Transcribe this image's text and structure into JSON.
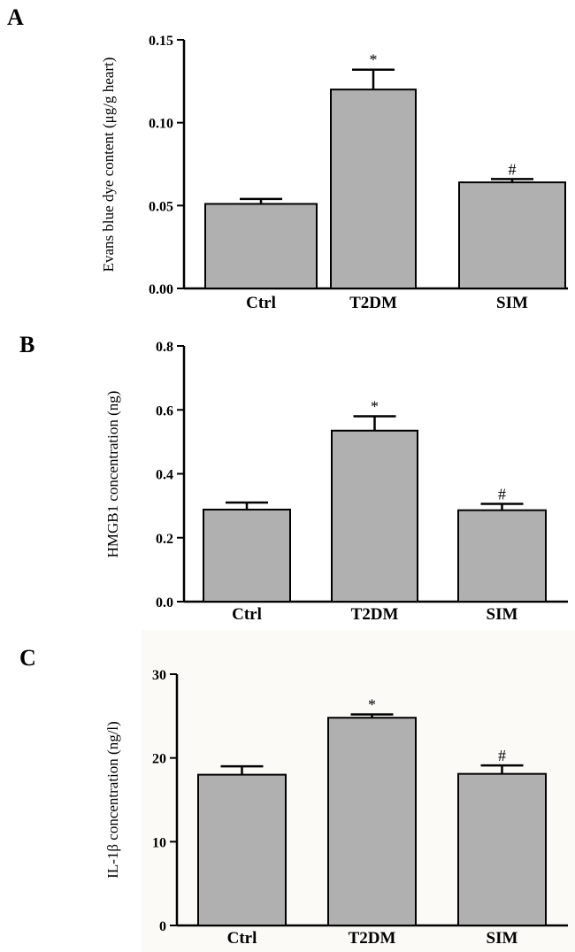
{
  "chart_data": [
    {
      "type": "bar",
      "panel": "A",
      "categories": [
        "Ctrl",
        "T2DM",
        "SIM"
      ],
      "values": [
        0.051,
        0.12,
        0.064
      ],
      "errors": [
        0.003,
        0.012,
        0.002
      ],
      "annotations": [
        "",
        "*",
        "#"
      ],
      "ylabel": "Evans blue dye content (μg/g heart)",
      "ylim": [
        0,
        0.15
      ],
      "yticks": [
        "0.00",
        "0.05",
        "0.10",
        "0.15"
      ],
      "bar_color": "#b0b0b0"
    },
    {
      "type": "bar",
      "panel": "B",
      "categories": [
        "Ctrl",
        "T2DM",
        "SIM"
      ],
      "values": [
        0.288,
        0.535,
        0.286
      ],
      "errors": [
        0.022,
        0.045,
        0.02
      ],
      "annotations": [
        "",
        "*",
        "#"
      ],
      "ylabel": "HMGB1 concentration (ng)",
      "ylim": [
        0,
        0.8
      ],
      "yticks": [
        "0.0",
        "0.2",
        "0.4",
        "0.6",
        "0.8"
      ],
      "bar_color": "#b0b0b0"
    },
    {
      "type": "bar",
      "panel": "C",
      "categories": [
        "Ctrl",
        "T2DM",
        "SIM"
      ],
      "values": [
        18.0,
        24.8,
        18.1
      ],
      "errors": [
        1.0,
        0.4,
        1.0
      ],
      "annotations": [
        "",
        "*",
        "#"
      ],
      "ylabel": "IL-1β  concentration (ng/l)",
      "ylim": [
        0,
        30
      ],
      "yticks": [
        "0",
        "10",
        "20",
        "30"
      ],
      "bar_color": "#b0b0b0"
    }
  ]
}
